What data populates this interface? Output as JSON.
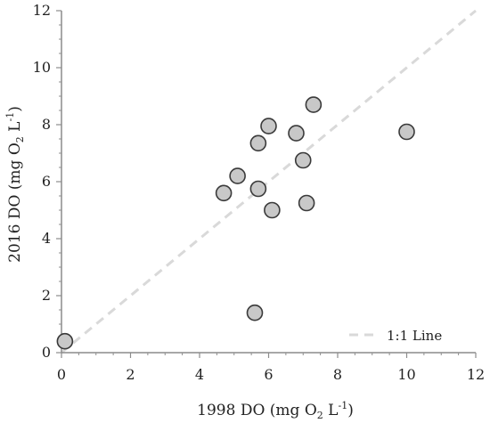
{
  "chart_data": {
    "type": "scatter",
    "xlabel": "1998 DO (mg O",
    "xlabel_sub": "2",
    "xlabel_mid": " L",
    "xlabel_sup": "-1",
    "xlabel_end": ")",
    "ylabel": "2016 DO (mg O",
    "ylabel_sub": "2",
    "ylabel_mid": " L",
    "ylabel_sup": "-1",
    "ylabel_end": ")",
    "xlim": [
      0,
      12
    ],
    "ylim": [
      0,
      12
    ],
    "x_ticks": [
      0,
      2,
      4,
      6,
      8,
      10,
      12
    ],
    "y_ticks": [
      0,
      2,
      4,
      6,
      8,
      10,
      12
    ],
    "x_tick_labels": [
      "0",
      "2",
      "4",
      "6",
      "8",
      "10",
      "12"
    ],
    "y_tick_labels": [
      "0",
      "2",
      "4",
      "6",
      "8",
      "10",
      "12"
    ],
    "grid": false,
    "legend": {
      "position": "bottom-right",
      "label": "1:1 Line"
    },
    "reference_line": {
      "label": "1:1 Line",
      "from": [
        0,
        0
      ],
      "to": [
        12,
        12
      ],
      "style": "dashed",
      "color": "#d9d9d9"
    },
    "series": [
      {
        "marker_color": "#c8c8c8",
        "marker_edge": "#3a3a3a",
        "points": [
          {
            "x": 0.1,
            "y": 0.4
          },
          {
            "x": 4.7,
            "y": 5.6
          },
          {
            "x": 5.1,
            "y": 6.2
          },
          {
            "x": 5.6,
            "y": 1.4
          },
          {
            "x": 5.7,
            "y": 7.35
          },
          {
            "x": 5.7,
            "y": 5.75
          },
          {
            "x": 6.0,
            "y": 7.95
          },
          {
            "x": 6.1,
            "y": 5.0
          },
          {
            "x": 6.8,
            "y": 7.7
          },
          {
            "x": 7.0,
            "y": 6.75
          },
          {
            "x": 7.1,
            "y": 5.25
          },
          {
            "x": 7.3,
            "y": 8.7
          },
          {
            "x": 10.0,
            "y": 7.75
          }
        ]
      }
    ]
  }
}
